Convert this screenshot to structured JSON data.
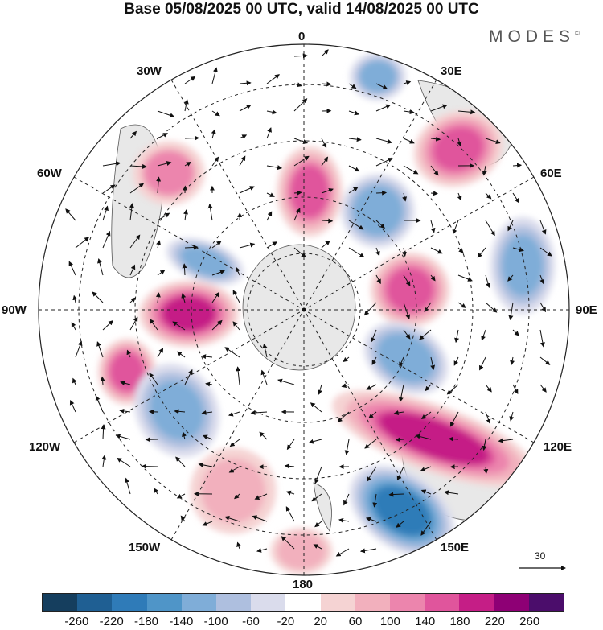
{
  "title": "Base 05/08/2025 00 UTC, valid 14/08/2025 00 UTC",
  "brand": "MODES",
  "brand_mark": "©",
  "longitude_labels": {
    "top": "0",
    "bottom": "180",
    "left": "90W",
    "right": "90E",
    "upper_left": "30W",
    "upper_right": "30E",
    "left_upper": "60W",
    "right_upper": "60E",
    "left_lower": "120W",
    "right_lower": "120E",
    "lower_left": "150W",
    "lower_right": "150E"
  },
  "reference_vector": "30",
  "colorbar": {
    "colors": [
      "#153e5e",
      "#1f5f93",
      "#2f7bb8",
      "#4f95c8",
      "#7fadd8",
      "#aebfdf",
      "#dadcec",
      "#ffffff",
      "#f5d3d3",
      "#f2b0bd",
      "#ec85ad",
      "#e0559c",
      "#c51e86",
      "#8e0075",
      "#4b0d6b"
    ],
    "ticks": [
      "-260",
      "-220",
      "-180",
      "-140",
      "-100",
      "-60",
      "-20",
      "20",
      "60",
      "100",
      "140",
      "180",
      "220",
      "260"
    ]
  },
  "colors": {
    "land": "#e8e8e8",
    "coast": "#555555",
    "grid": "#222222"
  },
  "anomalies": [
    {
      "name": "north-atlantic-blue",
      "value": -110
    },
    {
      "name": "north-pole-high",
      "value": 150
    },
    {
      "name": "barents-high",
      "value": 160
    },
    {
      "name": "siberia-low",
      "value": -140
    },
    {
      "name": "kara-high",
      "value": 170
    },
    {
      "name": "ural-low",
      "value": -120
    },
    {
      "name": "east-siberia-low",
      "value": -140
    },
    {
      "name": "pacific-high-band",
      "value": 180
    },
    {
      "name": "kamchatka-low",
      "value": -190
    },
    {
      "name": "canada-low",
      "value": -120
    },
    {
      "name": "canada-high",
      "value": 190
    },
    {
      "name": "alaska-high",
      "value": 170
    },
    {
      "name": "west-us-low",
      "value": -120
    },
    {
      "name": "north-pacific-high",
      "value": 80
    },
    {
      "name": "greenland-high",
      "value": 100
    },
    {
      "name": "bering-high",
      "value": 70
    }
  ]
}
